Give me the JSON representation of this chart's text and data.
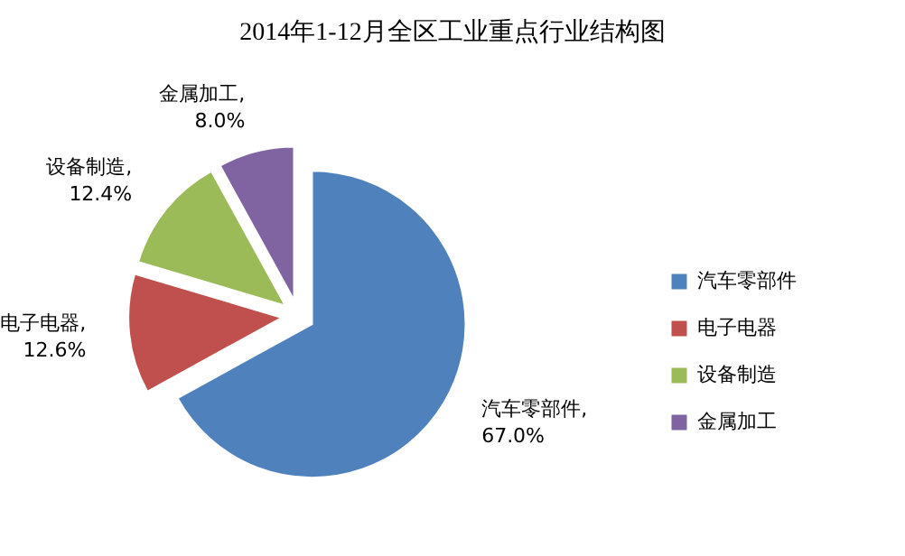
{
  "chart_data": {
    "type": "pie",
    "title": "2014年1-12月全区工业重点行业结构图",
    "categories": [
      "汽车零部件",
      "电子电器",
      "设备制造",
      "金属加工"
    ],
    "values": [
      67.0,
      12.6,
      12.4,
      8.0
    ],
    "colors": [
      "#4f81bd",
      "#c0504d",
      "#9bbb59",
      "#8064a2"
    ],
    "value_labels": [
      "汽车零部件,\n67.0%",
      "电子电器,\n12.6%",
      "设备制造,\n12.4%",
      "金属加工,\n8.0%"
    ],
    "legend": "right"
  }
}
